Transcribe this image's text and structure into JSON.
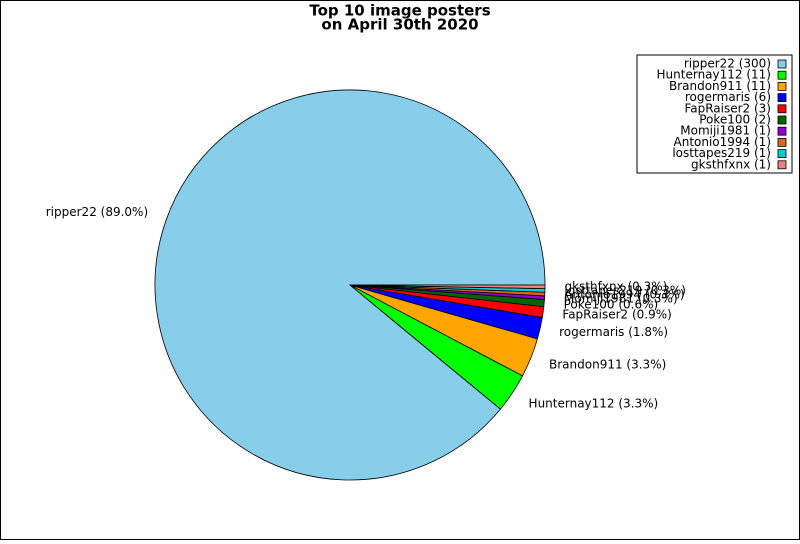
{
  "chart_data": {
    "type": "pie",
    "title": [
      "Top 10 image posters",
      "on April 30th 2020"
    ],
    "categories": [
      "ripper22 (300)",
      "Hunternay112 (11)",
      "Brandon911 (11)",
      "rogermaris (6)",
      "FapRaiser2 (3)",
      "Poke100 (2)",
      "Momiji1981  (1)",
      "Antonio1994 (1)",
      "losttapes219 (1)",
      "gksthfxnx (1)"
    ],
    "values": [
      300,
      11,
      11,
      6,
      3,
      2,
      1,
      1,
      1,
      1
    ],
    "value_labels": [
      "ripper22 (89.0%)",
      "Hunternay112 (3.3%)",
      "Brandon911 (3.3%)",
      "rogermaris (1.8%)",
      "FapRaiser2 (0.9%)",
      "Poke100 (0.6%)",
      "Momiji1981  (0.3%)",
      "Antonio1994 (0.3%)",
      "losttapes219 (0.3%)",
      "gksthfxnx (0.3%)"
    ],
    "colors": [
      "#87ceeb",
      "#00ff00",
      "#ffa500",
      "#0000ff",
      "#ff0000",
      "#006400",
      "#9400d3",
      "#d2691e",
      "#00ced1",
      "#f08080"
    ],
    "legend": "upper right"
  }
}
